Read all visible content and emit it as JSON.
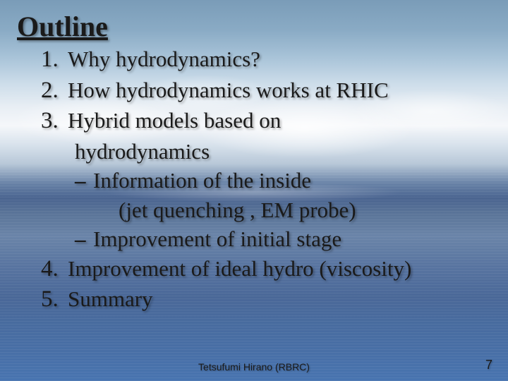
{
  "title": {
    "text": "Outline",
    "fontsize": 40
  },
  "items": {
    "fontsize": 31,
    "num_fontsize": 33,
    "list": [
      {
        "num": "1.",
        "text": "Why hydrodynamics?"
      },
      {
        "num": "2.",
        "text": "How hydrodynamics works at RHIC"
      },
      {
        "num": "3.",
        "text": "Hybrid models based on",
        "cont": "hydrodynamics",
        "sub": [
          {
            "dash": "–",
            "text": "Information of the inside",
            "extra": "(jet quenching , EM probe)"
          },
          {
            "dash": "–",
            "text": "Improvement of initial stage"
          }
        ]
      },
      {
        "num": "4.",
        "text": "Improvement of ideal hydro (viscosity)"
      },
      {
        "num": "5.",
        "text": "Summary"
      }
    ]
  },
  "footer": {
    "author": "Tetsufumi Hirano (RBRC)",
    "author_fontsize": 14,
    "page": "7",
    "page_fontsize": 18
  },
  "colors": {
    "text": "#1a1a1a",
    "shadow": "rgba(0,0,0,0.35)"
  }
}
